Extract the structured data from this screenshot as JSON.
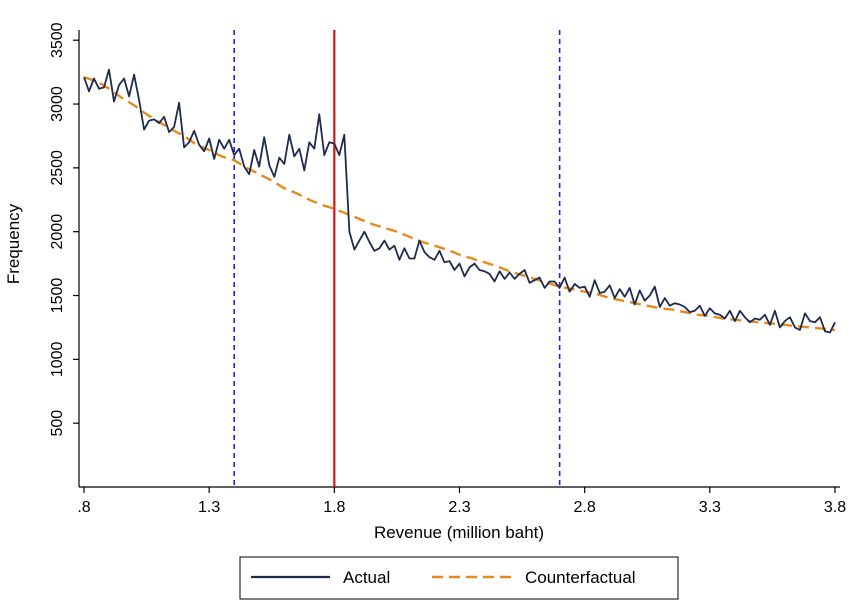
{
  "chart_data": {
    "type": "line",
    "title": "",
    "xlabel": "Revenue (million baht)",
    "ylabel": "Frequency",
    "xlim": [
      0.78,
      3.82
    ],
    "ylim": [
      0,
      3580
    ],
    "x_ticks": [
      0.8,
      1.3,
      1.8,
      2.3,
      2.8,
      3.3,
      3.8
    ],
    "x_tick_labels": [
      ".8",
      "1.3",
      "1.8",
      "2.3",
      "2.8",
      "3.3",
      "3.8"
    ],
    "y_ticks": [
      500,
      1000,
      1500,
      2000,
      2500,
      3000,
      3500
    ],
    "y_tick_labels": [
      "500",
      "1000",
      "1500",
      "2000",
      "2500",
      "3000",
      "3500"
    ],
    "grid": false,
    "legend_position": "bottom",
    "reference_lines": [
      {
        "x": 1.4,
        "style": "dashed",
        "color": "#2222dd"
      },
      {
        "x": 1.8,
        "style": "solid",
        "color": "#dd1111"
      },
      {
        "x": 2.7,
        "style": "dashed",
        "color": "#2222dd"
      }
    ],
    "series": [
      {
        "name": "Actual",
        "color": "#1f2a4d",
        "style": "solid",
        "x": [
          0.8,
          0.82,
          0.84,
          0.86,
          0.88,
          0.9,
          0.92,
          0.94,
          0.96,
          0.98,
          1.0,
          1.02,
          1.04,
          1.06,
          1.08,
          1.1,
          1.12,
          1.14,
          1.16,
          1.18,
          1.2,
          1.22,
          1.24,
          1.26,
          1.28,
          1.3,
          1.32,
          1.34,
          1.36,
          1.38,
          1.4,
          1.42,
          1.44,
          1.46,
          1.48,
          1.5,
          1.52,
          1.54,
          1.56,
          1.58,
          1.6,
          1.62,
          1.64,
          1.66,
          1.68,
          1.7,
          1.72,
          1.74,
          1.76,
          1.78,
          1.8,
          1.82,
          1.84,
          1.86,
          1.88,
          1.9,
          1.92,
          1.94,
          1.96,
          1.98,
          2.0,
          2.02,
          2.04,
          2.06,
          2.08,
          2.1,
          2.12,
          2.14,
          2.16,
          2.18,
          2.2,
          2.22,
          2.24,
          2.26,
          2.28,
          2.3,
          2.32,
          2.34,
          2.36,
          2.38,
          2.4,
          2.42,
          2.44,
          2.46,
          2.48,
          2.5,
          2.52,
          2.54,
          2.56,
          2.58,
          2.6,
          2.62,
          2.64,
          2.66,
          2.68,
          2.7,
          2.72,
          2.74,
          2.76,
          2.78,
          2.8,
          2.82,
          2.84,
          2.86,
          2.88,
          2.9,
          2.92,
          2.94,
          2.96,
          2.98,
          3.0,
          3.02,
          3.04,
          3.06,
          3.08,
          3.1,
          3.12,
          3.14,
          3.16,
          3.18,
          3.2,
          3.22,
          3.24,
          3.26,
          3.28,
          3.3,
          3.32,
          3.34,
          3.36,
          3.38,
          3.4,
          3.42,
          3.44,
          3.46,
          3.48,
          3.5,
          3.52,
          3.54,
          3.56,
          3.58,
          3.6,
          3.62,
          3.64,
          3.66,
          3.68,
          3.7,
          3.72,
          3.74,
          3.76,
          3.78,
          3.8
        ],
        "y": [
          3210,
          3100,
          3200,
          3120,
          3130,
          3270,
          3020,
          3150,
          3200,
          3060,
          3230,
          3030,
          2800,
          2870,
          2880,
          2850,
          2900,
          2780,
          2820,
          3010,
          2660,
          2700,
          2790,
          2680,
          2630,
          2730,
          2570,
          2720,
          2650,
          2720,
          2600,
          2650,
          2510,
          2450,
          2640,
          2510,
          2740,
          2520,
          2430,
          2580,
          2530,
          2760,
          2590,
          2650,
          2480,
          2700,
          2650,
          2920,
          2600,
          2700,
          2690,
          2600,
          2760,
          2000,
          1860,
          1930,
          2000,
          1920,
          1850,
          1870,
          1930,
          1860,
          1890,
          1780,
          1870,
          1790,
          1790,
          1930,
          1840,
          1800,
          1780,
          1850,
          1760,
          1770,
          1700,
          1750,
          1650,
          1720,
          1750,
          1700,
          1690,
          1670,
          1610,
          1690,
          1630,
          1680,
          1630,
          1670,
          1700,
          1600,
          1620,
          1640,
          1560,
          1610,
          1610,
          1560,
          1640,
          1530,
          1590,
          1560,
          1570,
          1490,
          1620,
          1520,
          1530,
          1580,
          1480,
          1550,
          1490,
          1560,
          1430,
          1540,
          1460,
          1500,
          1570,
          1410,
          1480,
          1420,
          1440,
          1430,
          1410,
          1370,
          1380,
          1420,
          1340,
          1400,
          1360,
          1350,
          1320,
          1380,
          1300,
          1380,
          1330,
          1290,
          1320,
          1310,
          1350,
          1270,
          1380,
          1250,
          1300,
          1330,
          1250,
          1230,
          1360,
          1300,
          1290,
          1330,
          1220,
          1210,
          1290
        ]
      },
      {
        "name": "Counterfactual",
        "color": "#e58a1f",
        "style": "dashed",
        "x": [
          0.8,
          0.85,
          0.9,
          0.95,
          1.0,
          1.05,
          1.1,
          1.15,
          1.2,
          1.25,
          1.3,
          1.35,
          1.4,
          1.45,
          1.5,
          1.55,
          1.6,
          1.65,
          1.7,
          1.75,
          1.8,
          1.85,
          1.9,
          1.95,
          2.0,
          2.05,
          2.1,
          2.15,
          2.2,
          2.25,
          2.3,
          2.35,
          2.4,
          2.45,
          2.5,
          2.55,
          2.6,
          2.65,
          2.7,
          2.75,
          2.8,
          2.85,
          2.9,
          2.95,
          3.0,
          3.05,
          3.1,
          3.15,
          3.2,
          3.25,
          3.3,
          3.35,
          3.4,
          3.45,
          3.5,
          3.55,
          3.6,
          3.65,
          3.7,
          3.75,
          3.8
        ],
        "y": [
          3210,
          3180,
          3120,
          3050,
          2990,
          2920,
          2860,
          2800,
          2750,
          2680,
          2640,
          2590,
          2560,
          2500,
          2450,
          2400,
          2340,
          2300,
          2250,
          2210,
          2180,
          2140,
          2100,
          2060,
          2030,
          2000,
          1960,
          1920,
          1890,
          1860,
          1820,
          1790,
          1760,
          1730,
          1690,
          1660,
          1630,
          1600,
          1570,
          1550,
          1530,
          1510,
          1480,
          1460,
          1440,
          1420,
          1400,
          1390,
          1370,
          1350,
          1340,
          1320,
          1310,
          1300,
          1290,
          1280,
          1270,
          1260,
          1250,
          1240,
          1230
        ]
      }
    ]
  }
}
